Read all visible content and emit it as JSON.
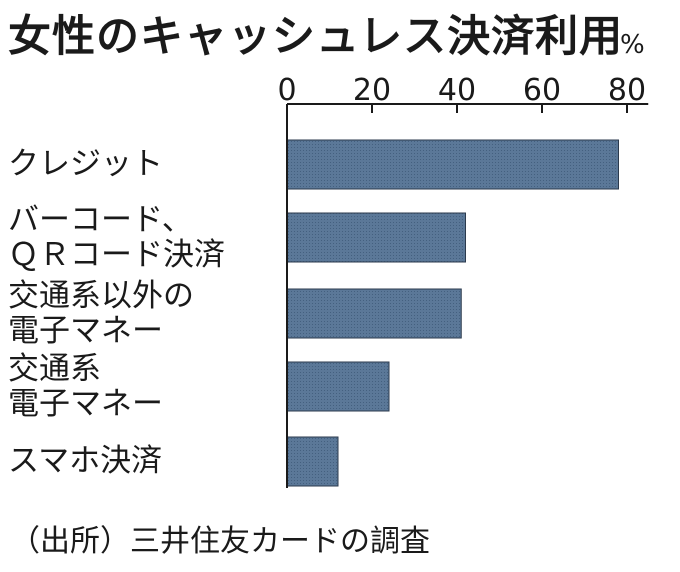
{
  "title": "女性のキャッシュレス決済利用",
  "unit": "%",
  "source": "（出所）三井住友カードの調査",
  "colors": {
    "bar": "#5b7898",
    "barEdge": "#2b3a4d",
    "axis": "#1a1a1a"
  },
  "chart_data": {
    "type": "bar",
    "orientation": "horizontal",
    "title": "女性のキャッシュレス決済利用",
    "unit": "%",
    "categories": [
      "クレジット",
      "バーコード、\nＱＲコード決済",
      "交通系以外の\n電子マネー",
      "交通系\n電子マネー",
      "スマホ決済"
    ],
    "values": [
      78,
      42,
      41,
      24,
      12
    ],
    "xlim": [
      0,
      85
    ],
    "ticks": [
      0,
      20,
      40,
      60,
      80
    ],
    "axis_position": "top",
    "grid": false,
    "legend": "none"
  }
}
